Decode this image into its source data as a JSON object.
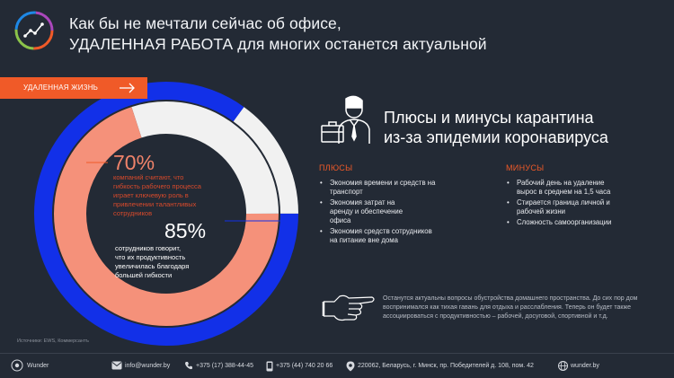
{
  "header": {
    "title_line1": "Как бы не мечтали сейчас об офисе,",
    "title_line2": "УДАЛЕННАЯ РАБОТА для многих останется актуальной"
  },
  "ribbon": {
    "label": "УДАЛЕННАЯ ЖИЗНЬ"
  },
  "stats": {
    "outer": {
      "value": "85%",
      "fraction": 0.85,
      "text": "сотрудников говорит,\nчто их продуктивность\nувеличилась благодаря\nбольшей гибкости"
    },
    "inner": {
      "value": "70%",
      "fraction": 0.7,
      "text": "компаний считают, что\nгибкость рабочего процесса\nиграет ключевую  роль в\nпривлечении талантливых\nсотрудников"
    }
  },
  "source": "Источники: EWS, Коммерсантъ",
  "panel": {
    "title_line1": "Плюсы и минусы карантина",
    "title_line2": "из-за эпидемии коронавируса",
    "pros_heading": "ПЛЮСЫ",
    "pros": [
      "Экономия времени и средств на\nтранспорт",
      "Экономия затрат на\nаренду и  обеспечение\nофиса",
      "Экономия средств сотрудников\nна  питание вне дома"
    ],
    "cons_heading": "МИНУСЫ",
    "cons": [
      "Рабочий день на удаление\nвырос в  среднем на 1,5 часа",
      "Стирается граница личной и\nрабочей  жизни",
      "Сложность самоорганизации"
    ]
  },
  "note": "Останутся актуальны вопросы обустройства домашнего пространства. До сих пор дом воспринимался как тихая гавань для отдыха и расслабления. Теперь он будет также ассоциироваться с продуктивностью – рабочей, досуговой, спортивной и т.д.",
  "footer": {
    "brand": "Wunder",
    "email": "info@wunder.by",
    "phone1": "+375 (17) 388-44-45",
    "phone2": "+375 (44) 740 20 66",
    "address": "220062, Беларусь, г. Минск, пр. Победителей д. 108, пом. 42",
    "site": "wunder.by"
  },
  "colors": {
    "background": "#232a35",
    "accent_orange": "#f05a28",
    "outer_ring": "#1230e8",
    "inner_ring": "#f5917a",
    "ring_rest": "#f1f1f1"
  },
  "icons": [
    "chart-logo-icon",
    "arrow-right-icon",
    "businessman-icon",
    "pointing-hand-icon",
    "brand-logo-icon",
    "mail-icon",
    "phone-icon",
    "mobile-icon",
    "location-icon",
    "globe-icon"
  ]
}
